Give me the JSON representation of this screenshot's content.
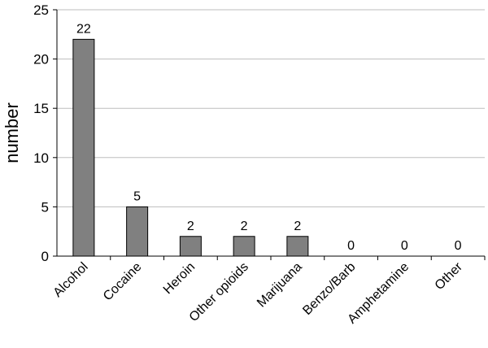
{
  "chart_data": {
    "type": "bar",
    "title": "",
    "xlabel": "",
    "ylabel": "number",
    "categories": [
      "Alcohol",
      "Cocaine",
      "Heroin",
      "Other opioids",
      "Marijuana",
      "Benzo/Barb",
      "Amphetamine",
      "Other"
    ],
    "values": [
      22,
      5,
      2,
      2,
      2,
      0,
      0,
      0
    ],
    "ylim": [
      0,
      25
    ],
    "yticks": [
      0,
      5,
      10,
      15,
      20,
      25
    ],
    "grid": true,
    "legend": "none",
    "data_labels": true,
    "bar_color": "#808080"
  }
}
